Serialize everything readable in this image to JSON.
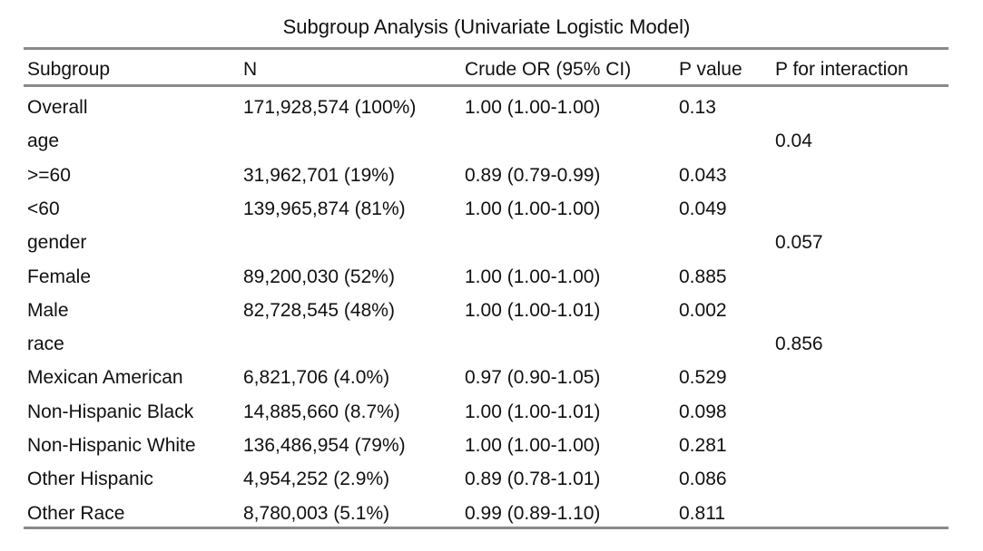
{
  "title": "Subgroup Analysis (Univariate Logistic Model)",
  "table": {
    "headers": {
      "subgroup": "Subgroup",
      "n": "N",
      "or": "Crude OR (95% CI)",
      "p": "P value",
      "interaction": "P for interaction"
    },
    "rows": [
      {
        "subgroup": "Overall",
        "n": "171,928,574 (100%)",
        "or": "1.00 (1.00-1.00)",
        "p": "0.13",
        "interaction": ""
      },
      {
        "subgroup": "age",
        "n": "",
        "or": "",
        "p": "",
        "interaction": "0.04"
      },
      {
        "subgroup": ">=60",
        "n": "31,962,701 (19%)",
        "or": "0.89 (0.79-0.99)",
        "p": "0.043",
        "interaction": ""
      },
      {
        "subgroup": "<60",
        "n": "139,965,874 (81%)",
        "or": "1.00 (1.00-1.00)",
        "p": "0.049",
        "interaction": ""
      },
      {
        "subgroup": "gender",
        "n": "",
        "or": "",
        "p": "",
        "interaction": "0.057"
      },
      {
        "subgroup": "Female",
        "n": "89,200,030 (52%)",
        "or": "1.00 (1.00-1.00)",
        "p": "0.885",
        "interaction": ""
      },
      {
        "subgroup": "Male",
        "n": "82,728,545 (48%)",
        "or": "1.00 (1.00-1.01)",
        "p": "0.002",
        "interaction": ""
      },
      {
        "subgroup": "race",
        "n": "",
        "or": "",
        "p": "",
        "interaction": "0.856"
      },
      {
        "subgroup": "Mexican American",
        "n": "6,821,706 (4.0%)",
        "or": "0.97 (0.90-1.05)",
        "p": "0.529",
        "interaction": ""
      },
      {
        "subgroup": "Non-Hispanic Black",
        "n": "14,885,660 (8.7%)",
        "or": "1.00 (1.00-1.01)",
        "p": "0.098",
        "interaction": ""
      },
      {
        "subgroup": "Non-Hispanic White",
        "n": "136,486,954 (79%)",
        "or": "1.00 (1.00-1.00)",
        "p": "0.281",
        "interaction": ""
      },
      {
        "subgroup": "Other Hispanic",
        "n": "4,954,252 (2.9%)",
        "or": "0.89 (0.78-1.01)",
        "p": "0.086",
        "interaction": ""
      },
      {
        "subgroup": "Other Race",
        "n": "8,780,003 (5.1%)",
        "or": "0.99 (0.89-1.10)",
        "p": "0.811",
        "interaction": ""
      }
    ]
  }
}
